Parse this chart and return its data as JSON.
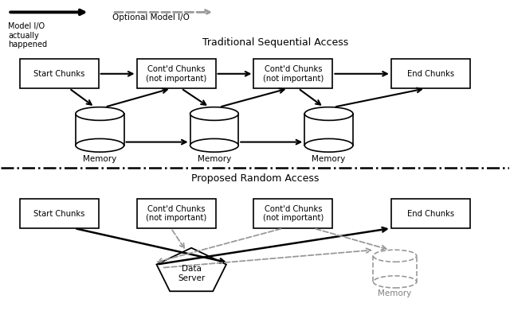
{
  "fig_width": 6.4,
  "fig_height": 4.2,
  "dpi": 100,
  "background": "#ffffff",
  "legend_solid_label": "Model I/O\nactually\nhappened",
  "legend_dashed_label": "Optional Model I/O",
  "top_title": "Traditional Sequential Access",
  "bottom_title": "Proposed Random Access",
  "solid_color": "#000000",
  "dashed_color": "#999999"
}
